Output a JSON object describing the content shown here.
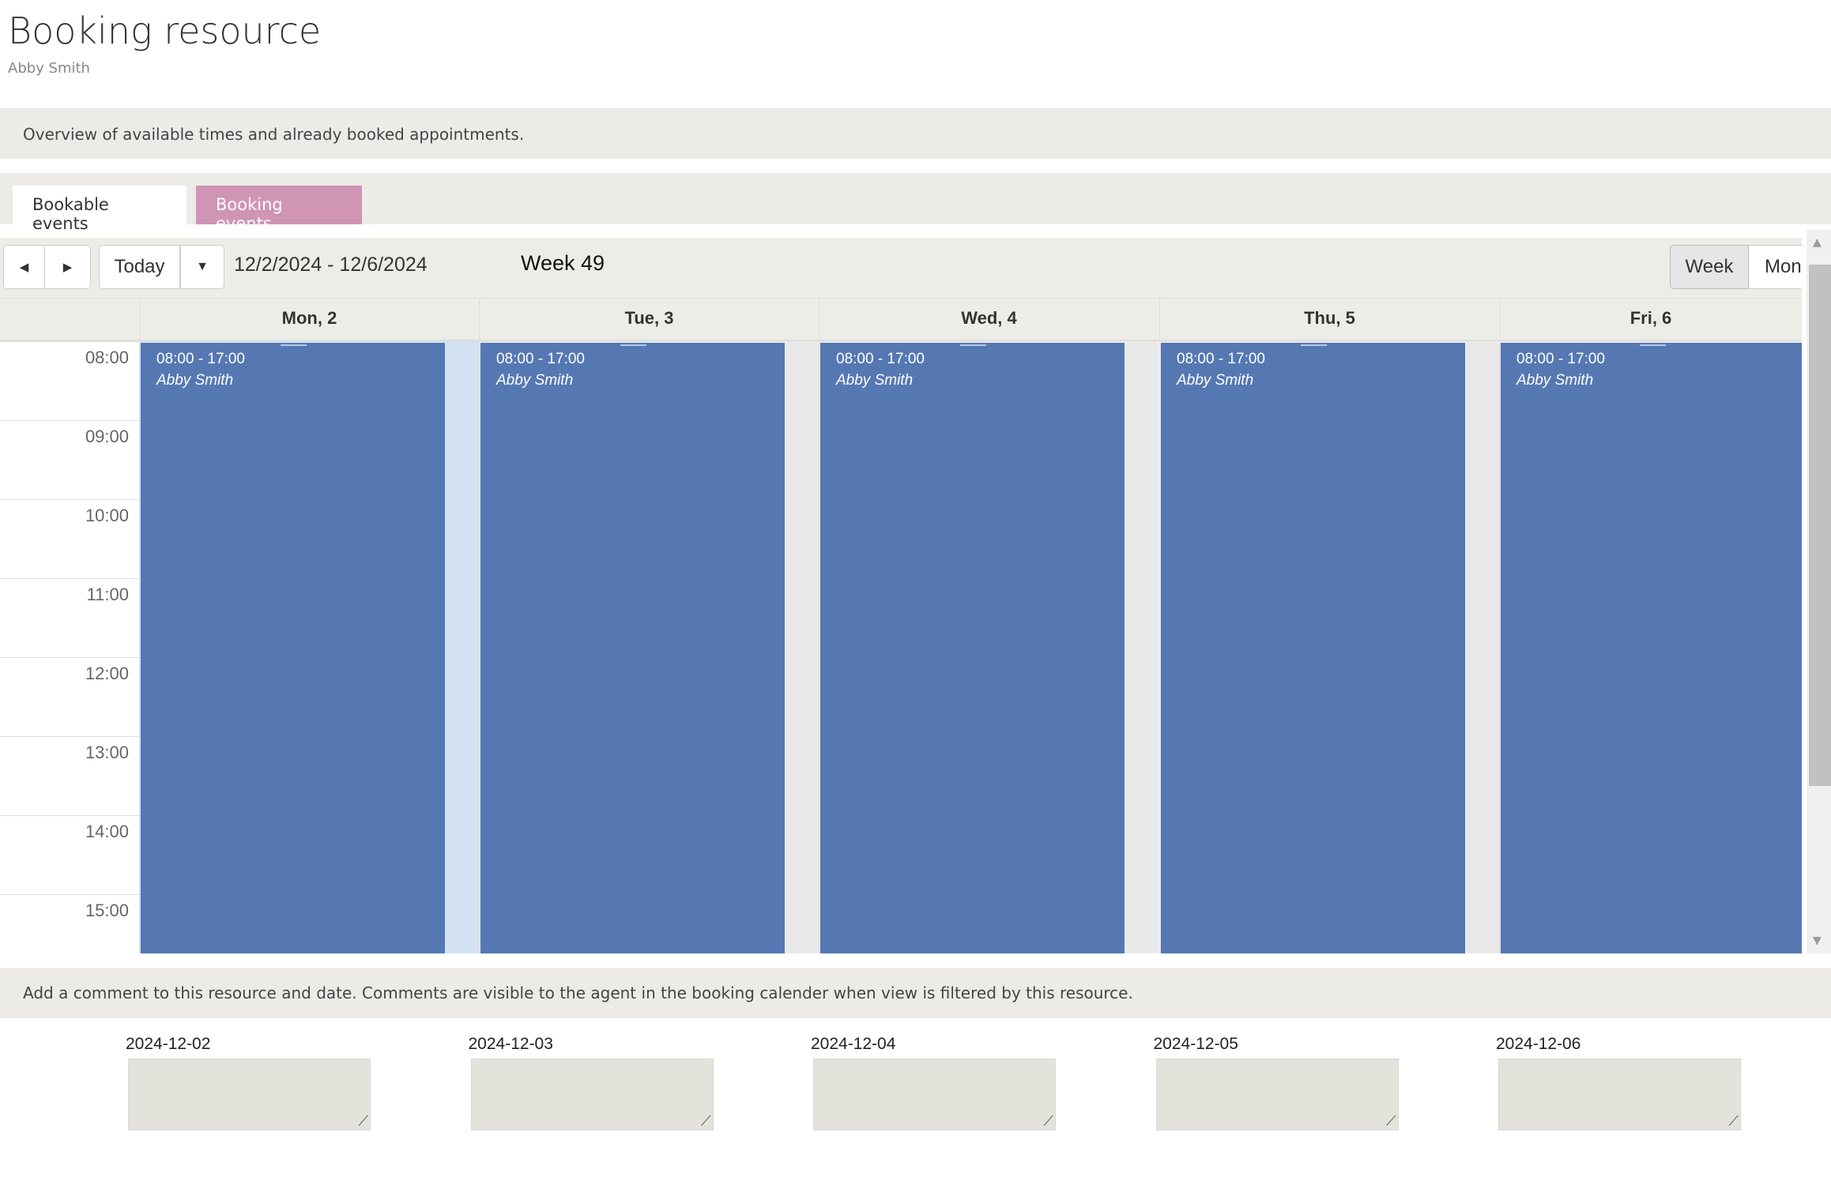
{
  "page": {
    "title": "Booking resource",
    "subtitle": "Abby Smith",
    "intro": "Overview of available times and already booked appointments."
  },
  "tabs": [
    {
      "label": "Bookable events",
      "active": false
    },
    {
      "label": "Booking events",
      "active": true,
      "color": "#d094b4"
    }
  ],
  "toolbar": {
    "prev_icon": "◀",
    "next_icon": "▶",
    "today": "Today",
    "dropdown_icon": "▼",
    "range": "12/2/2024 - 12/6/2024",
    "week": "Week 49",
    "views": [
      "Week",
      "Mont"
    ]
  },
  "calendar": {
    "days": [
      "Mon, 2",
      "Tue, 3",
      "Wed, 4",
      "Thu, 5",
      "Fri, 6"
    ],
    "hours": [
      "08:00",
      "09:00",
      "10:00",
      "11:00",
      "12:00",
      "13:00",
      "14:00",
      "15:00"
    ],
    "events": [
      {
        "time": "08:00 - 17:00",
        "name": "Abby Smith"
      },
      {
        "time": "08:00 - 17:00",
        "name": "Abby Smith"
      },
      {
        "time": "08:00 - 17:00",
        "name": "Abby Smith"
      },
      {
        "time": "08:00 - 17:00",
        "name": "Abby Smith"
      },
      {
        "time": "08:00 - 17:00",
        "name": "Abby Smith"
      }
    ],
    "event_color": "#5578b3",
    "today_color": "#d3e2f3"
  },
  "comments": {
    "intro": "Add a comment to this resource and date. Comments are visible to the agent in the booking calender when view is filtered by this resource.",
    "dates": [
      "2024-12-02",
      "2024-12-03",
      "2024-12-04",
      "2024-12-05",
      "2024-12-06"
    ]
  }
}
